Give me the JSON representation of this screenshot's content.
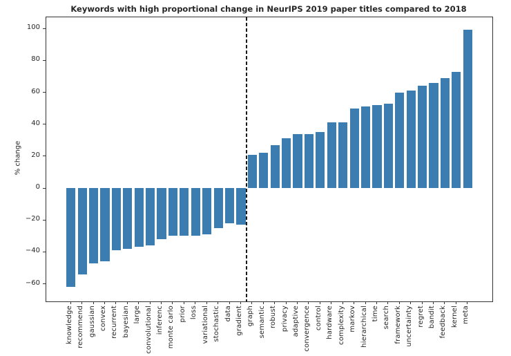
{
  "chart_data": {
    "type": "bar",
    "title": "Keywords with high proportional change in NeurIPS 2019 paper titles compared to 2018",
    "ylabel": "% change",
    "categories": [
      "knowledge",
      "recommend",
      "gaussian",
      "convex",
      "recurrent",
      "bayesian",
      "large",
      "convolutional",
      "inferenc",
      "monte carlo",
      "prior",
      "loss",
      "variational",
      "stochastic",
      "data",
      "gradient",
      "graph",
      "semantic",
      "robust",
      "privacy",
      "adaptive",
      "convergence",
      "control",
      "hardware",
      "complexity",
      "markov",
      "hierarchical",
      "time",
      "search",
      "framework",
      "uncertainty",
      "regret",
      "bandit",
      "feedback",
      "kernel",
      "meta"
    ],
    "values": [
      -62,
      -54,
      -47,
      -46,
      -39,
      -38,
      -37,
      -36,
      -32,
      -30,
      -30,
      -30,
      -29,
      -25,
      -22,
      -23,
      21,
      22,
      27,
      31,
      34,
      34,
      35,
      41,
      41,
      50,
      51,
      52,
      53,
      60,
      61,
      64,
      66,
      69,
      73,
      99
    ],
    "yticks": [
      100,
      80,
      60,
      40,
      20,
      0,
      -20,
      -40,
      -60
    ],
    "ylim": [
      -71,
      107
    ],
    "bar_color": "#3b7db1",
    "divider_position_between": [
      "gradient",
      "graph"
    ],
    "grid": false,
    "legend": false
  }
}
